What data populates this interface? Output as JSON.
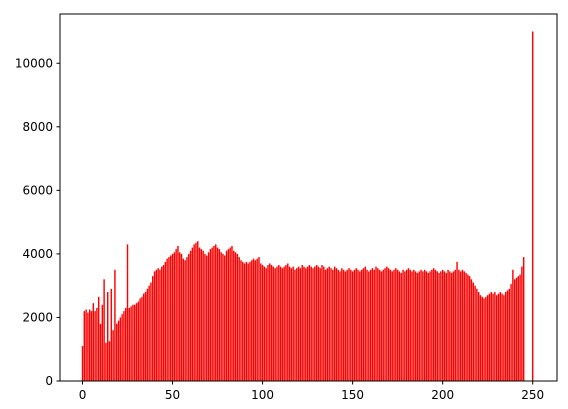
{
  "chart_data": {
    "type": "bar",
    "color": "#ff0000",
    "x": [
      0,
      1,
      2,
      3,
      4,
      5,
      6,
      7,
      8,
      9,
      10,
      11,
      12,
      13,
      14,
      15,
      16,
      17,
      18,
      19,
      20,
      21,
      22,
      23,
      24,
      25,
      26,
      27,
      28,
      29,
      30,
      31,
      32,
      33,
      34,
      35,
      36,
      37,
      38,
      39,
      40,
      41,
      42,
      43,
      44,
      45,
      46,
      47,
      48,
      49,
      50,
      51,
      52,
      53,
      54,
      55,
      56,
      57,
      58,
      59,
      60,
      61,
      62,
      63,
      64,
      65,
      66,
      67,
      68,
      69,
      70,
      71,
      72,
      73,
      74,
      75,
      76,
      77,
      78,
      79,
      80,
      81,
      82,
      83,
      84,
      85,
      86,
      87,
      88,
      89,
      90,
      91,
      92,
      93,
      94,
      95,
      96,
      97,
      98,
      99,
      100,
      101,
      102,
      103,
      104,
      105,
      106,
      107,
      108,
      109,
      110,
      111,
      112,
      113,
      114,
      115,
      116,
      117,
      118,
      119,
      120,
      121,
      122,
      123,
      124,
      125,
      126,
      127,
      128,
      129,
      130,
      131,
      132,
      133,
      134,
      135,
      136,
      137,
      138,
      139,
      140,
      141,
      142,
      143,
      144,
      145,
      146,
      147,
      148,
      149,
      150,
      151,
      152,
      153,
      154,
      155,
      156,
      157,
      158,
      159,
      160,
      161,
      162,
      163,
      164,
      165,
      166,
      167,
      168,
      169,
      170,
      171,
      172,
      173,
      174,
      175,
      176,
      177,
      178,
      179,
      180,
      181,
      182,
      183,
      184,
      185,
      186,
      187,
      188,
      189,
      190,
      191,
      192,
      193,
      194,
      195,
      196,
      197,
      198,
      199,
      200,
      201,
      202,
      203,
      204,
      205,
      206,
      207,
      208,
      209,
      210,
      211,
      212,
      213,
      214,
      215,
      216,
      217,
      218,
      219,
      220,
      221,
      222,
      223,
      224,
      225,
      226,
      227,
      228,
      229,
      230,
      231,
      232,
      233,
      234,
      235,
      236,
      237,
      238,
      239,
      240,
      241,
      242,
      243,
      244,
      245,
      246,
      247,
      248,
      249,
      250
    ],
    "values": [
      1100,
      2200,
      2250,
      2150,
      2250,
      2200,
      2450,
      2200,
      2300,
      2650,
      1800,
      2400,
      3200,
      1200,
      2800,
      1250,
      2900,
      1600,
      3500,
      1800,
      1900,
      2000,
      2100,
      2200,
      2300,
      4300,
      2300,
      2350,
      2400,
      2400,
      2450,
      2500,
      2600,
      2650,
      2750,
      2800,
      2900,
      3000,
      3100,
      3300,
      3450,
      3500,
      3550,
      3500,
      3600,
      3650,
      3750,
      3850,
      3900,
      3950,
      4000,
      4050,
      4150,
      4250,
      4050,
      4000,
      3850,
      3800,
      3900,
      4000,
      4100,
      4200,
      4300,
      4350,
      4400,
      4200,
      4150,
      4100,
      4000,
      3950,
      4050,
      4150,
      4200,
      4250,
      4300,
      4200,
      4150,
      4050,
      4000,
      3950,
      4100,
      4150,
      4200,
      4250,
      4100,
      4050,
      4000,
      3900,
      3800,
      3750,
      3700,
      3750,
      3700,
      3750,
      3800,
      3850,
      3800,
      3850,
      3900,
      3700,
      3650,
      3600,
      3550,
      3650,
      3700,
      3650,
      3600,
      3550,
      3600,
      3650,
      3600,
      3550,
      3600,
      3650,
      3700,
      3600,
      3550,
      3600,
      3500,
      3550,
      3600,
      3550,
      3650,
      3600,
      3550,
      3600,
      3650,
      3600,
      3550,
      3600,
      3650,
      3600,
      3550,
      3650,
      3600,
      3500,
      3550,
      3600,
      3550,
      3500,
      3600,
      3550,
      3500,
      3450,
      3550,
      3500,
      3450,
      3500,
      3550,
      3500,
      3450,
      3500,
      3550,
      3500,
      3450,
      3500,
      3550,
      3600,
      3500,
      3450,
      3500,
      3550,
      3500,
      3600,
      3550,
      3500,
      3450,
      3500,
      3550,
      3600,
      3550,
      3500,
      3450,
      3500,
      3550,
      3500,
      3450,
      3400,
      3500,
      3450,
      3500,
      3550,
      3500,
      3450,
      3500,
      3450,
      3400,
      3450,
      3500,
      3450,
      3500,
      3450,
      3400,
      3450,
      3500,
      3550,
      3500,
      3450,
      3400,
      3450,
      3500,
      3450,
      3400,
      3500,
      3450,
      3400,
      3450,
      3500,
      3750,
      3500,
      3450,
      3500,
      3450,
      3400,
      3350,
      3300,
      3200,
      3100,
      3000,
      2900,
      2800,
      2700,
      2650,
      2600,
      2650,
      2700,
      2750,
      2800,
      2750,
      2800,
      2700,
      2750,
      2800,
      2750,
      2700,
      2800,
      2850,
      2900,
      3050,
      3500,
      3200,
      3250,
      3300,
      3350,
      3600,
      3900,
      0,
      0,
      0,
      0,
      11000
    ],
    "xlim": [
      -12.5,
      263.5
    ],
    "ylim": [
      0,
      11550
    ],
    "xticks": [
      0,
      50,
      100,
      150,
      200,
      250
    ],
    "yticks": [
      0,
      2000,
      4000,
      6000,
      8000,
      10000
    ]
  }
}
